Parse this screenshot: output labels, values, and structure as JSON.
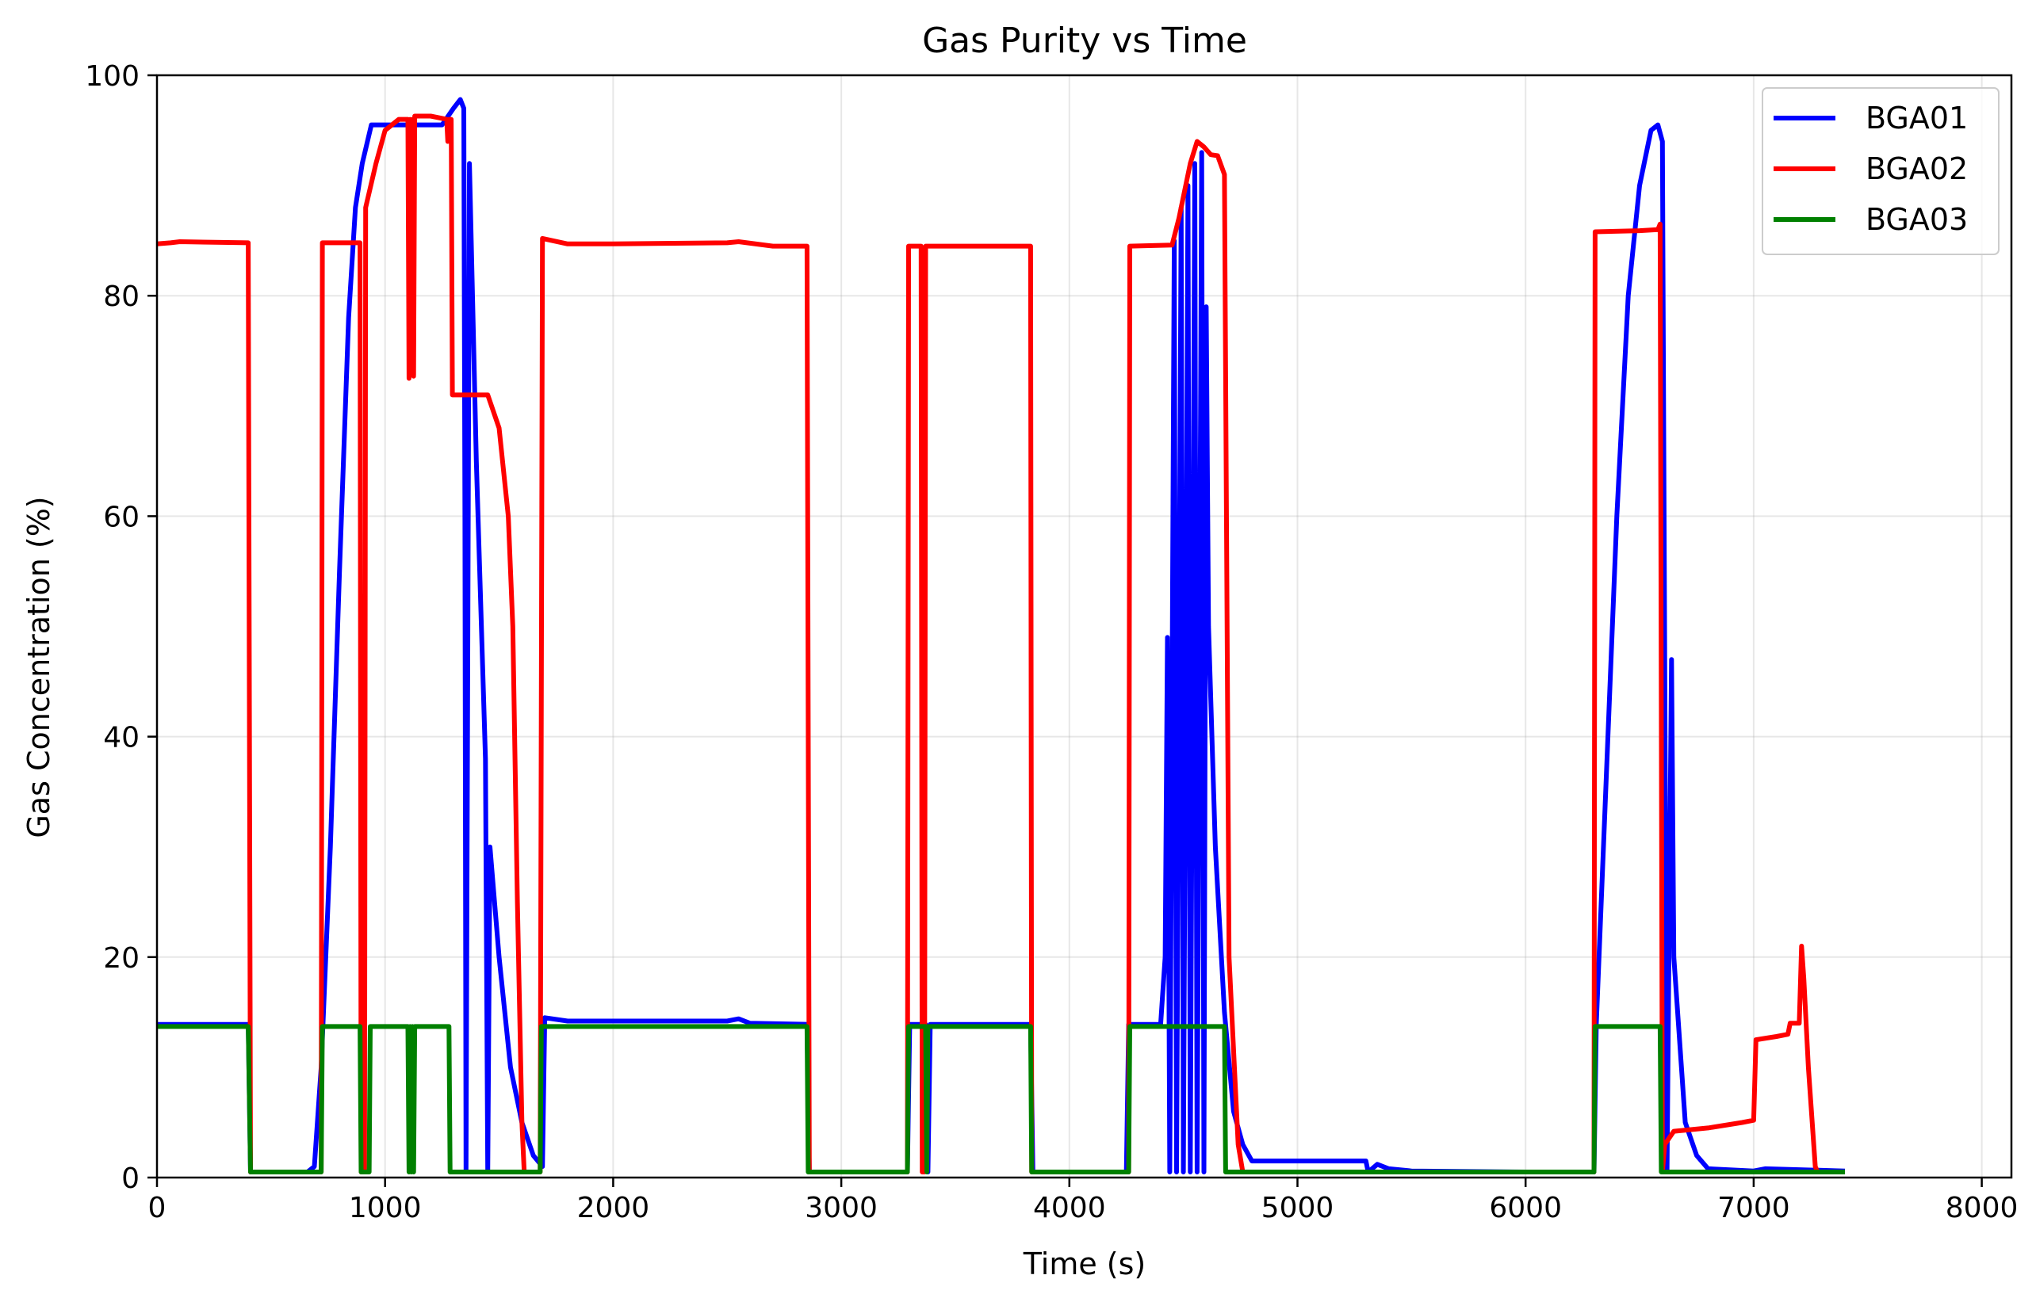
{
  "chart_data": {
    "type": "line",
    "title": "Gas Purity vs Time",
    "xlabel": "Time (s)",
    "ylabel": "Gas Concentration (%)",
    "xlim": [
      0,
      8130
    ],
    "ylim": [
      0,
      100
    ],
    "xticks": [
      0,
      1000,
      2000,
      3000,
      4000,
      5000,
      6000,
      7000,
      8000
    ],
    "yticks": [
      0,
      20,
      40,
      60,
      80,
      100
    ],
    "grid": true,
    "legend_position": "top-right",
    "series": [
      {
        "name": "BGA01",
        "color": "#0000ff",
        "points": [
          [
            0,
            13.9
          ],
          [
            400,
            13.9
          ],
          [
            410,
            0.5
          ],
          [
            660,
            0.5
          ],
          [
            690,
            1
          ],
          [
            720,
            10
          ],
          [
            760,
            30
          ],
          [
            800,
            55
          ],
          [
            840,
            78
          ],
          [
            870,
            88
          ],
          [
            900,
            92
          ],
          [
            940,
            95.5
          ],
          [
            1000,
            95.5
          ],
          [
            1100,
            95.5
          ],
          [
            1200,
            95.5
          ],
          [
            1250,
            95.5
          ],
          [
            1300,
            97
          ],
          [
            1330,
            97.8
          ],
          [
            1345,
            97
          ],
          [
            1350,
            60
          ],
          [
            1355,
            0.5
          ],
          [
            1370,
            92
          ],
          [
            1400,
            65
          ],
          [
            1440,
            38
          ],
          [
            1450,
            0.5
          ],
          [
            1460,
            30
          ],
          [
            1500,
            20
          ],
          [
            1550,
            10
          ],
          [
            1600,
            5
          ],
          [
            1650,
            2
          ],
          [
            1690,
            1
          ],
          [
            1700,
            14.5
          ],
          [
            1800,
            14.2
          ],
          [
            2000,
            14.2
          ],
          [
            2500,
            14.2
          ],
          [
            2550,
            14.4
          ],
          [
            2600,
            14
          ],
          [
            2850,
            13.9
          ],
          [
            2860,
            0.5
          ],
          [
            3290,
            0.5
          ],
          [
            3300,
            13.9
          ],
          [
            3370,
            13.9
          ],
          [
            3380,
            0.5
          ],
          [
            3390,
            13.9
          ],
          [
            3830,
            13.9
          ],
          [
            3840,
            0.5
          ],
          [
            4250,
            0.5
          ],
          [
            4260,
            13.9
          ],
          [
            4400,
            13.9
          ],
          [
            4420,
            20
          ],
          [
            4430,
            49
          ],
          [
            4440,
            0.5
          ],
          [
            4460,
            85
          ],
          [
            4470,
            0.5
          ],
          [
            4490,
            88
          ],
          [
            4500,
            0.5
          ],
          [
            4520,
            90
          ],
          [
            4530,
            0.5
          ],
          [
            4550,
            92
          ],
          [
            4560,
            0.5
          ],
          [
            4580,
            93
          ],
          [
            4590,
            0.5
          ],
          [
            4600,
            79
          ],
          [
            4610,
            50
          ],
          [
            4640,
            30
          ],
          [
            4680,
            15
          ],
          [
            4720,
            6
          ],
          [
            4760,
            3
          ],
          [
            4800,
            1.5
          ],
          [
            5300,
            1.5
          ],
          [
            5310,
            0.5
          ],
          [
            5350,
            1.2
          ],
          [
            5400,
            0.8
          ],
          [
            5500,
            0.6
          ],
          [
            6000,
            0.5
          ],
          [
            6300,
            0.5
          ],
          [
            6310,
            13.9
          ],
          [
            6400,
            60
          ],
          [
            6450,
            80
          ],
          [
            6500,
            90
          ],
          [
            6550,
            95
          ],
          [
            6580,
            95.5
          ],
          [
            6600,
            94
          ],
          [
            6620,
            0.5
          ],
          [
            6640,
            47
          ],
          [
            6650,
            20
          ],
          [
            6700,
            5
          ],
          [
            6750,
            2
          ],
          [
            6800,
            0.8
          ],
          [
            7000,
            0.6
          ],
          [
            7050,
            0.8
          ],
          [
            7400,
            0.6
          ]
        ]
      },
      {
        "name": "BGA02",
        "color": "#ff0000",
        "points": [
          [
            0,
            84.7
          ],
          [
            60,
            84.8
          ],
          [
            100,
            84.9
          ],
          [
            400,
            84.8
          ],
          [
            410,
            0.5
          ],
          [
            720,
            0.5
          ],
          [
            725,
            84.8
          ],
          [
            890,
            84.8
          ],
          [
            895,
            0.5
          ],
          [
            910,
            0.5
          ],
          [
            915,
            88
          ],
          [
            960,
            92
          ],
          [
            1000,
            95
          ],
          [
            1060,
            96
          ],
          [
            1100,
            96
          ],
          [
            1105,
            72.5
          ],
          [
            1110,
            96
          ],
          [
            1115,
            73
          ],
          [
            1120,
            96
          ],
          [
            1125,
            72.7
          ],
          [
            1130,
            96.3
          ],
          [
            1200,
            96.3
          ],
          [
            1270,
            96
          ],
          [
            1275,
            94
          ],
          [
            1280,
            96
          ],
          [
            1290,
            96
          ],
          [
            1295,
            71
          ],
          [
            1400,
            71
          ],
          [
            1450,
            71
          ],
          [
            1500,
            68
          ],
          [
            1540,
            60
          ],
          [
            1560,
            50
          ],
          [
            1580,
            25
          ],
          [
            1600,
            5
          ],
          [
            1610,
            0.5
          ],
          [
            1680,
            0.5
          ],
          [
            1690,
            85.2
          ],
          [
            1800,
            84.7
          ],
          [
            2000,
            84.7
          ],
          [
            2500,
            84.8
          ],
          [
            2550,
            84.9
          ],
          [
            2700,
            84.5
          ],
          [
            2850,
            84.5
          ],
          [
            2860,
            0.5
          ],
          [
            3290,
            0.5
          ],
          [
            3295,
            84.5
          ],
          [
            3350,
            84.5
          ],
          [
            3355,
            0.5
          ],
          [
            3365,
            0.5
          ],
          [
            3370,
            84.5
          ],
          [
            3830,
            84.5
          ],
          [
            3835,
            0.5
          ],
          [
            4260,
            0.5
          ],
          [
            4265,
            84.5
          ],
          [
            4450,
            84.6
          ],
          [
            4480,
            87
          ],
          [
            4530,
            92
          ],
          [
            4560,
            94
          ],
          [
            4590,
            93.5
          ],
          [
            4620,
            92.8
          ],
          [
            4650,
            92.7
          ],
          [
            4680,
            91
          ],
          [
            4700,
            20
          ],
          [
            4740,
            3
          ],
          [
            4760,
            0.5
          ],
          [
            6300,
            0.5
          ],
          [
            6305,
            85.8
          ],
          [
            6500,
            85.9
          ],
          [
            6580,
            86
          ],
          [
            6590,
            86.5
          ],
          [
            6600,
            0.5
          ],
          [
            6610,
            3
          ],
          [
            6650,
            4.2
          ],
          [
            6800,
            4.5
          ],
          [
            6950,
            5
          ],
          [
            7000,
            5.2
          ],
          [
            7010,
            12.5
          ],
          [
            7100,
            12.8
          ],
          [
            7150,
            13
          ],
          [
            7160,
            14
          ],
          [
            7200,
            14
          ],
          [
            7210,
            21
          ],
          [
            7220,
            18
          ],
          [
            7240,
            10
          ],
          [
            7270,
            1
          ],
          [
            7280,
            0.5
          ]
        ]
      },
      {
        "name": "BGA03",
        "color": "#008000",
        "points": [
          [
            0,
            13.7
          ],
          [
            400,
            13.7
          ],
          [
            410,
            0.5
          ],
          [
            720,
            0.5
          ],
          [
            725,
            13.7
          ],
          [
            890,
            13.7
          ],
          [
            895,
            0.5
          ],
          [
            930,
            0.5
          ],
          [
            935,
            13.7
          ],
          [
            1100,
            13.7
          ],
          [
            1105,
            0.5
          ],
          [
            1110,
            13.7
          ],
          [
            1115,
            0.5
          ],
          [
            1120,
            13.7
          ],
          [
            1125,
            0.5
          ],
          [
            1130,
            13.7
          ],
          [
            1280,
            13.7
          ],
          [
            1285,
            0.5
          ],
          [
            1680,
            0.5
          ],
          [
            1685,
            13.7
          ],
          [
            2850,
            13.7
          ],
          [
            2855,
            0.5
          ],
          [
            3290,
            0.5
          ],
          [
            3295,
            13.7
          ],
          [
            3370,
            13.7
          ],
          [
            3375,
            0.5
          ],
          [
            3380,
            13.7
          ],
          [
            3830,
            13.7
          ],
          [
            3835,
            0.5
          ],
          [
            4260,
            0.5
          ],
          [
            4265,
            13.7
          ],
          [
            4680,
            13.7
          ],
          [
            4685,
            0.5
          ],
          [
            6300,
            0.5
          ],
          [
            6305,
            13.7
          ],
          [
            6590,
            13.7
          ],
          [
            6595,
            0.5
          ],
          [
            7400,
            0.5
          ]
        ]
      }
    ]
  }
}
